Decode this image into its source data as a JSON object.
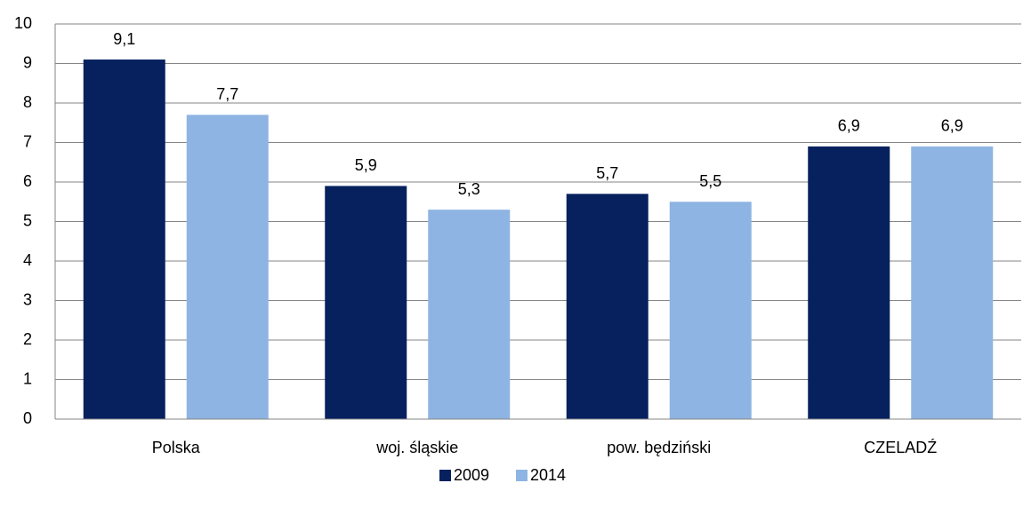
{
  "chart_data": {
    "type": "bar",
    "categories": [
      "Polska",
      "woj. śląskie",
      "pow. będziński",
      "CZELADŹ"
    ],
    "series": [
      {
        "name": "2009",
        "color": "#06215e",
        "values": [
          9.1,
          5.9,
          5.7,
          6.9
        ],
        "value_labels": [
          "9,1",
          "5,9",
          "5,7",
          "6,9"
        ]
      },
      {
        "name": "2014",
        "color": "#8eb4e3",
        "values": [
          7.7,
          5.3,
          5.5,
          6.9
        ],
        "value_labels": [
          "7,7",
          "5,3",
          "5,5",
          "6,9"
        ]
      }
    ],
    "ylim": [
      0,
      10
    ],
    "yticks": [
      0,
      1,
      2,
      3,
      4,
      5,
      6,
      7,
      8,
      9,
      10
    ],
    "grid": true,
    "legend": "bottom"
  }
}
